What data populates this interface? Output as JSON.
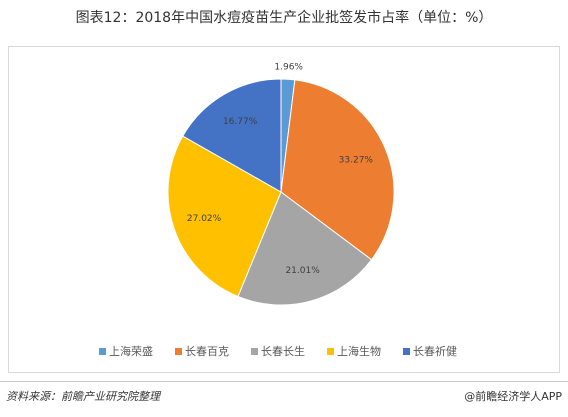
{
  "chart_data": {
    "type": "pie",
    "title": "图表12：2018年中国水痘疫苗生产企业批签发市占率（单位：%）",
    "categories": [
      "上海荣盛",
      "长春百克",
      "长春长生",
      "上海生物",
      "长春祈健"
    ],
    "values": [
      1.96,
      33.27,
      21.01,
      27.02,
      16.77
    ],
    "value_labels": [
      "1.96%",
      "33.27%",
      "21.01%",
      "27.02%",
      "16.77%"
    ],
    "colors": [
      "#5b9bd5",
      "#ed7d31",
      "#a5a5a5",
      "#ffc000",
      "#4472c4"
    ],
    "legend": "bottom"
  },
  "footer": {
    "source": "资料来源：前瞻产业研究院整理",
    "brand": "@前瞻经济学人APP"
  }
}
